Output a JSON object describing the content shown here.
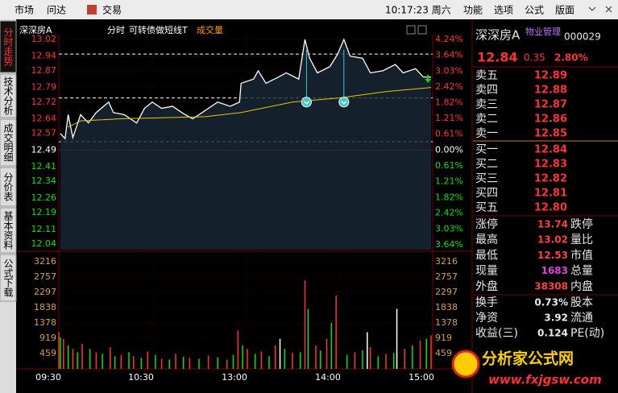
{
  "toolbar": {
    "items": [
      "市场",
      "问达",
      "交易"
    ],
    "clock": "10:17:23 周六",
    "menu": [
      "功能",
      "选项",
      "公式",
      "版面"
    ]
  },
  "tabs": [
    "分时走势",
    "技术分析",
    "成交明细",
    "分价表",
    "基本资料",
    "公式下载"
  ],
  "chart_data": {
    "type": "line",
    "header": {
      "name": "深深房A",
      "mode": "分时",
      "formula": "可转债做短线T",
      "volume_title": "成交量"
    },
    "prev_close": 12.49,
    "xlim": [
      0,
      240
    ],
    "xticks": [
      {
        "value": 0,
        "label": "09:30"
      },
      {
        "value": 60,
        "label": "10:30"
      },
      {
        "value": 120,
        "label": "13:00"
      },
      {
        "value": 180,
        "label": "14:00"
      },
      {
        "value": 240,
        "label": "15:00"
      }
    ],
    "ylim": [
      12.013,
      13.047
    ],
    "yticks": [
      13.02,
      12.94,
      12.87,
      12.79,
      12.72,
      12.64,
      12.57,
      12.49,
      12.41,
      12.34,
      12.26,
      12.19,
      12.11,
      12.04
    ],
    "y2lim": [
      -3.82,
      4.46
    ],
    "y2ticks": [
      {
        "value": 4.24,
        "label": "4.24%"
      },
      {
        "value": 3.64,
        "label": "3.64%"
      },
      {
        "value": 3.03,
        "label": "3.03%"
      },
      {
        "value": 2.42,
        "label": "2.42%"
      },
      {
        "value": 1.82,
        "label": "1.82%"
      },
      {
        "value": 1.21,
        "label": "1.21%"
      },
      {
        "value": 0.61,
        "label": "0.61%"
      },
      {
        "value": 0,
        "label": "0.00%"
      },
      {
        "value": -0.61,
        "label": "0.61%"
      },
      {
        "value": -1.21,
        "label": "1.21%"
      },
      {
        "value": -1.82,
        "label": "1.82%"
      },
      {
        "value": -2.42,
        "label": "2.42%"
      },
      {
        "value": -3.03,
        "label": "3.03%"
      },
      {
        "value": -3.64,
        "label": "3.64%"
      }
    ],
    "series": [
      {
        "color": "#ffffff",
        "x": [
          1,
          4,
          6,
          9,
          14,
          19,
          24,
          32,
          35,
          42,
          50,
          55,
          60,
          66,
          73,
          81,
          86,
          94,
          102,
          110,
          116,
          117,
          125,
          128,
          133,
          141,
          146,
          154,
          158,
          161,
          166,
          174,
          179,
          183,
          187,
          195,
          200,
          208,
          216,
          221,
          229,
          234,
          239
        ],
        "values": [
          12.57,
          12.545,
          12.66,
          12.55,
          12.66,
          12.62,
          12.67,
          12.72,
          12.67,
          12.66,
          12.62,
          12.69,
          12.72,
          12.69,
          12.7,
          12.66,
          12.64,
          12.68,
          12.72,
          12.7,
          12.72,
          12.81,
          12.83,
          12.87,
          12.81,
          12.84,
          12.86,
          12.83,
          13.02,
          12.93,
          12.86,
          12.89,
          12.95,
          13.02,
          12.94,
          12.93,
          12.86,
          12.87,
          12.9,
          12.86,
          12.88,
          12.84,
          12.84
        ]
      },
      {
        "color": "#e6c700",
        "x": [
          6,
          14,
          40,
          94,
          117,
          150,
          180,
          210,
          239
        ],
        "values": [
          12.6,
          12.63,
          12.64,
          12.65,
          12.67,
          12.72,
          12.74,
          12.77,
          12.79
        ]
      }
    ],
    "ref_lines": {
      "color": "#ffffff",
      "values": [
        12.95,
        12.74,
        12.53
      ]
    },
    "signals": {
      "color": "#3cc8c8",
      "x": [
        159,
        183
      ],
      "values": [
        12.72,
        12.72
      ]
    },
    "down_arrow": {
      "color": "#00e600",
      "x": 237,
      "value": 12.82
    },
    "volume": {
      "ylim": [
        0,
        3430
      ],
      "yticks": [
        3216,
        2757,
        2297,
        1838,
        1378,
        919,
        459
      ],
      "series": [
        {
          "color": "#ff3232",
          "x": [
            0,
            3,
            9,
            15,
            24,
            33,
            40,
            48,
            57,
            66,
            75,
            84,
            96,
            108,
            115,
            121,
            130,
            139,
            150,
            158,
            165,
            172,
            178,
            190,
            200,
            210,
            222,
            232,
            239
          ],
          "values": [
            1100,
            900,
            600,
            750,
            500,
            650,
            420,
            380,
            520,
            300,
            450,
            330,
            400,
            280,
            1150,
            600,
            520,
            700,
            480,
            2650,
            700,
            900,
            2200,
            500,
            650,
            450,
            600,
            850,
            1000
          ]
        },
        {
          "color": "#00e600",
          "x": [
            1,
            6,
            12,
            20,
            28,
            36,
            45,
            53,
            62,
            71,
            80,
            90,
            102,
            112,
            118,
            126,
            135,
            145,
            155,
            160,
            168,
            175,
            185,
            195,
            205,
            215,
            227,
            236
          ],
          "values": [
            950,
            700,
            500,
            600,
            450,
            380,
            500,
            330,
            420,
            280,
            360,
            300,
            350,
            420,
            700,
            450,
            380,
            600,
            500,
            1800,
            550,
            1380,
            420,
            560,
            380,
            480,
            700,
            900
          ]
        },
        {
          "color": "#ffffff",
          "x": [
            142,
            198,
            217
          ],
          "values": [
            900,
            1100,
            1800
          ]
        }
      ]
    }
  },
  "quote": {
    "name": "深深房A",
    "industry": "物业管理",
    "code": "000029",
    "price": "12.84",
    "change": "0.35",
    "change_pct": "2.80%",
    "asks": [
      {
        "label": "卖五",
        "price": "12.89"
      },
      {
        "label": "卖四",
        "price": "12.88"
      },
      {
        "label": "卖三",
        "price": "12.87"
      },
      {
        "label": "卖二",
        "price": "12.86"
      },
      {
        "label": "卖一",
        "price": "12.85"
      }
    ],
    "bids": [
      {
        "label": "买一",
        "price": "12.84"
      },
      {
        "label": "买二",
        "price": "12.83"
      },
      {
        "label": "买三",
        "price": "12.82"
      },
      {
        "label": "买四",
        "price": "12.81"
      },
      {
        "label": "买五",
        "price": "12.80"
      }
    ],
    "stats": [
      {
        "label": "涨停",
        "value": "13.74",
        "label2": "跌停"
      },
      {
        "label": "最高",
        "value": "13.02",
        "label2": "量比"
      },
      {
        "label": "最低",
        "value": "12.53",
        "label2": "市值"
      },
      {
        "label": "现量",
        "value": "1683",
        "label2": "总量"
      },
      {
        "label": "外盘",
        "value": "38308",
        "label2": "内盘"
      }
    ],
    "stats2": [
      {
        "label": "换手",
        "value": "0.73%",
        "label2": "股本"
      },
      {
        "label": "净资",
        "value": "3.92",
        "label2": "流通"
      },
      {
        "label": "收益(三)",
        "value": "0.124",
        "label2": "PE(动)"
      }
    ]
  },
  "logo": {
    "title": "分析家公式网",
    "url": "www.fxjgsw.com"
  }
}
